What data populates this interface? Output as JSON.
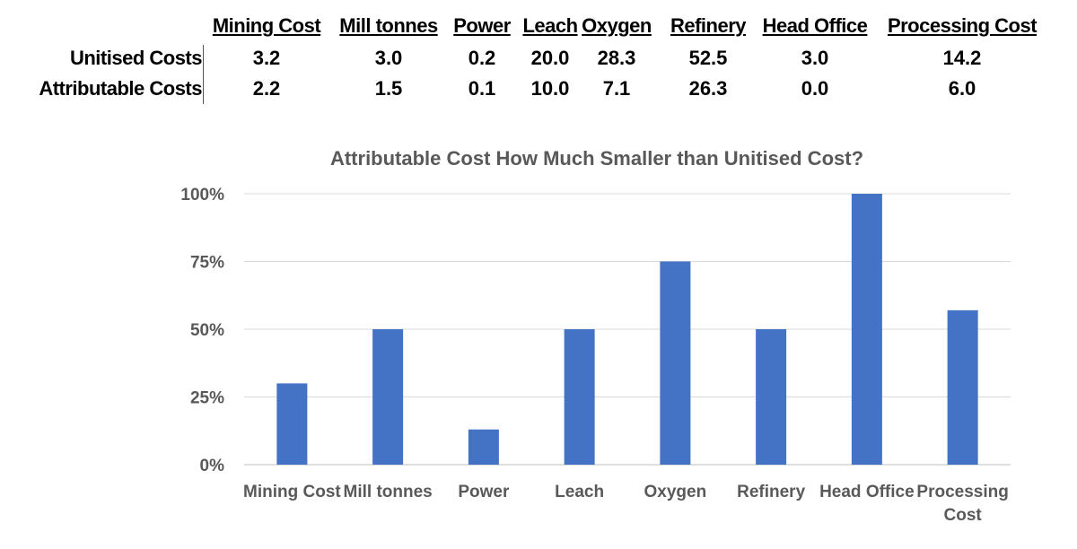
{
  "table": {
    "columns": [
      "Mining Cost",
      "Mill tonnes",
      "Power",
      "Leach",
      "Oxygen",
      "Refinery",
      "Head Office",
      "Processing Cost"
    ],
    "rows": [
      {
        "label": "Unitised Costs",
        "values": [
          "3.2",
          "3.0",
          "0.2",
          "20.0",
          "28.3",
          "52.5",
          "3.0",
          "14.2"
        ]
      },
      {
        "label": "Attributable Costs",
        "values": [
          "2.2",
          "1.5",
          "0.1",
          "10.0",
          "7.1",
          "26.3",
          "0.0",
          "6.0"
        ]
      }
    ]
  },
  "chart_data": {
    "type": "bar",
    "title": "Attributable Cost How Much Smaller than Unitised Cost?",
    "categories": [
      "Mining Cost",
      "Mill tonnes",
      "Power",
      "Leach",
      "Oxygen",
      "Refinery",
      "Head Office",
      "Processing Cost"
    ],
    "values": [
      30,
      50,
      13,
      50,
      75,
      50,
      100,
      57
    ],
    "yticks": [
      "0%",
      "25%",
      "50%",
      "75%",
      "100%"
    ],
    "ylim": [
      0,
      100
    ],
    "grid": true,
    "bar_color": "#4472C4",
    "xlabel": "",
    "ylabel": ""
  }
}
